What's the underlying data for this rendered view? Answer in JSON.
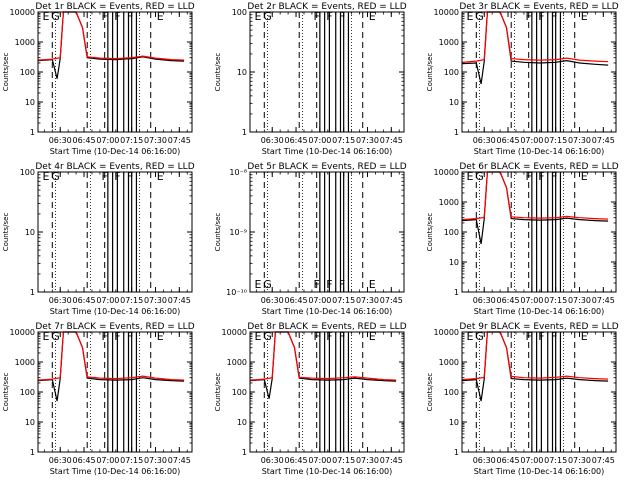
{
  "chart_data": [
    {
      "type": "line",
      "title": "Det 1r BLACK = Events, RED = LLD",
      "ylabel": "Counts/sec",
      "xlabel": "Start Time (10-Dec-14 06:16:00)",
      "xticks": [
        "06:30",
        "06:45",
        "07:00",
        "07:15",
        "07:30",
        "07:45"
      ],
      "yscale": "log",
      "ylim": [
        1,
        10000
      ],
      "yticks": [
        "1",
        "10",
        "100",
        "1000",
        "10000"
      ],
      "flags": [
        "E",
        "G",
        "F",
        "F",
        "F",
        "E"
      ],
      "flare": true,
      "series": [
        {
          "color": "#000000",
          "x": [
            "06:16",
            "06:25",
            "06:28",
            "06:30",
            "06:32",
            "06:40",
            "06:44",
            "06:47",
            "06:55",
            "07:05",
            "07:15",
            "07:22",
            "07:30",
            "07:40",
            "07:48"
          ],
          "y": [
            240,
            260,
            60,
            280,
            10000,
            10000,
            3000,
            300,
            270,
            260,
            280,
            320,
            270,
            240,
            230
          ]
        },
        {
          "color": "#ff0000",
          "x": [
            "06:16",
            "06:25",
            "06:30",
            "06:32",
            "06:40",
            "06:44",
            "06:47",
            "06:55",
            "07:05",
            "07:15",
            "07:22",
            "07:30",
            "07:40",
            "07:48"
          ],
          "y": [
            250,
            270,
            300,
            10000,
            10000,
            3000,
            320,
            290,
            280,
            300,
            340,
            290,
            260,
            250
          ]
        }
      ]
    },
    {
      "type": "line",
      "title": "Det 2r BLACK = Events, RED = LLD",
      "ylabel": "Counts/sec",
      "xlabel": "Start Time (10-Dec-14 06:16:00)",
      "xticks": [
        "06:30",
        "06:45",
        "07:00",
        "07:15",
        "07:30",
        "07:45"
      ],
      "yscale": "log",
      "ylim": [
        1,
        100
      ],
      "yticks": [
        "1",
        "10",
        "100"
      ],
      "flags": [
        "E",
        "G",
        "F",
        "F",
        "F",
        "E"
      ],
      "flare": false,
      "series": []
    },
    {
      "type": "line",
      "title": "Det 3r BLACK = Events, RED = LLD",
      "ylabel": "Counts/sec",
      "xlabel": "Start Time (10-Dec-14 06:16:00)",
      "xticks": [
        "06:30",
        "06:45",
        "07:00",
        "07:15",
        "07:30",
        "07:45"
      ],
      "yscale": "log",
      "ylim": [
        1,
        10000
      ],
      "yticks": [
        "1",
        "10",
        "100",
        "1000",
        "10000"
      ],
      "flags": [
        "E",
        "G",
        "F",
        "F",
        "F",
        "E"
      ],
      "flare": true,
      "series": [
        {
          "color": "#000000",
          "x": [
            "06:16",
            "06:25",
            "06:28",
            "06:30",
            "06:32",
            "06:40",
            "06:44",
            "06:47",
            "06:55",
            "07:05",
            "07:15",
            "07:22",
            "07:30",
            "07:40",
            "07:48"
          ],
          "y": [
            190,
            200,
            40,
            220,
            10000,
            10000,
            3000,
            230,
            210,
            200,
            210,
            240,
            200,
            180,
            170
          ]
        },
        {
          "color": "#ff0000",
          "x": [
            "06:16",
            "06:25",
            "06:30",
            "06:32",
            "06:40",
            "06:44",
            "06:47",
            "06:55",
            "07:05",
            "07:15",
            "07:22",
            "07:30",
            "07:40",
            "07:48"
          ],
          "y": [
            210,
            230,
            260,
            10000,
            10000,
            3000,
            280,
            260,
            250,
            260,
            290,
            250,
            230,
            220
          ]
        }
      ]
    },
    {
      "type": "line",
      "title": "Det 4r BLACK = Events, RED = LLD",
      "ylabel": "Counts/sec",
      "xlabel": "Start Time (10-Dec-14 06:16:00)",
      "xticks": [
        "06:30",
        "06:45",
        "07:00",
        "07:15",
        "07:30",
        "07:45"
      ],
      "yscale": "log",
      "ylim": [
        1,
        100
      ],
      "yticks": [
        "1",
        "10",
        "100"
      ],
      "flags": [
        "E",
        "G",
        "F",
        "F",
        "F",
        "E"
      ],
      "flare": false,
      "series": []
    },
    {
      "type": "line",
      "title": "Det 5r BLACK = Events, RED = LLD",
      "ylabel": "Counts/sec",
      "xlabel": "Start Time (10-Dec-14 06:16:00)",
      "xticks": [
        "06:30",
        "06:45",
        "07:00",
        "07:15",
        "07:30",
        "07:45"
      ],
      "yscale": "log",
      "ylim": [
        1e-10,
        1e-08
      ],
      "yticks": [
        "10⁻¹⁰",
        "10⁻⁹",
        "10⁻⁸"
      ],
      "flags": [
        "E",
        "G",
        "F",
        "F",
        "F",
        "E"
      ],
      "flare": false,
      "series": []
    },
    {
      "type": "line",
      "title": "Det 6r BLACK = Events, RED = LLD",
      "ylabel": "Counts/sec",
      "xlabel": "Start Time (10-Dec-14 06:16:00)",
      "xticks": [
        "06:30",
        "06:45",
        "07:00",
        "07:15",
        "07:30",
        "07:45"
      ],
      "yscale": "log",
      "ylim": [
        1,
        10000
      ],
      "yticks": [
        "1",
        "10",
        "100",
        "1000",
        "10000"
      ],
      "flags": [
        "E",
        "G",
        "F",
        "F",
        "F",
        "E"
      ],
      "flare": true,
      "series": [
        {
          "color": "#000000",
          "x": [
            "06:16",
            "06:25",
            "06:28",
            "06:30",
            "06:32",
            "06:40",
            "06:44",
            "06:47",
            "06:55",
            "07:05",
            "07:15",
            "07:22",
            "07:30",
            "07:40",
            "07:48"
          ],
          "y": [
            240,
            260,
            40,
            270,
            10000,
            10000,
            3000,
            280,
            260,
            250,
            260,
            290,
            260,
            240,
            230
          ]
        },
        {
          "color": "#ff0000",
          "x": [
            "06:16",
            "06:25",
            "06:30",
            "06:32",
            "06:40",
            "06:44",
            "06:47",
            "06:55",
            "07:05",
            "07:15",
            "07:22",
            "07:30",
            "07:40",
            "07:48"
          ],
          "y": [
            260,
            280,
            310,
            10000,
            10000,
            3000,
            320,
            300,
            290,
            300,
            330,
            300,
            280,
            270
          ]
        }
      ]
    },
    {
      "type": "line",
      "title": "Det 7r BLACK = Events, RED = LLD",
      "ylabel": "Counts/sec",
      "xlabel": "Start Time (10-Dec-14 06:16:00)",
      "xticks": [
        "06:30",
        "06:45",
        "07:00",
        "07:15",
        "07:30",
        "07:45"
      ],
      "yscale": "log",
      "ylim": [
        1,
        10000
      ],
      "yticks": [
        "1",
        "10",
        "100",
        "1000",
        "10000"
      ],
      "flags": [
        "E",
        "G",
        "F",
        "F",
        "F",
        "E"
      ],
      "flare": true,
      "series": [
        {
          "color": "#000000",
          "x": [
            "06:16",
            "06:25",
            "06:28",
            "06:30",
            "06:32",
            "06:40",
            "06:44",
            "06:47",
            "06:55",
            "07:05",
            "07:15",
            "07:22",
            "07:30",
            "07:40",
            "07:48"
          ],
          "y": [
            240,
            260,
            50,
            280,
            10000,
            10000,
            3000,
            290,
            260,
            250,
            260,
            300,
            260,
            240,
            230
          ]
        },
        {
          "color": "#ff0000",
          "x": [
            "06:16",
            "06:25",
            "06:30",
            "06:32",
            "06:40",
            "06:44",
            "06:47",
            "06:55",
            "07:05",
            "07:15",
            "07:22",
            "07:30",
            "07:40",
            "07:48"
          ],
          "y": [
            250,
            270,
            300,
            10000,
            10000,
            3000,
            320,
            290,
            280,
            300,
            340,
            290,
            260,
            250
          ]
        }
      ]
    },
    {
      "type": "line",
      "title": "Det 8r BLACK = Events, RED = LLD",
      "ylabel": "Counts/sec",
      "xlabel": "Start Time (10-Dec-14 06:16:00)",
      "xticks": [
        "06:30",
        "06:45",
        "07:00",
        "07:15",
        "07:30",
        "07:45"
      ],
      "yscale": "log",
      "ylim": [
        1,
        10000
      ],
      "yticks": [
        "1",
        "10",
        "100",
        "1000",
        "10000"
      ],
      "flags": [
        "E",
        "G",
        "F",
        "F",
        "F",
        "E"
      ],
      "flare": true,
      "series": [
        {
          "color": "#000000",
          "x": [
            "06:16",
            "06:25",
            "06:28",
            "06:30",
            "06:32",
            "06:40",
            "06:44",
            "06:47",
            "06:55",
            "07:05",
            "07:15",
            "07:22",
            "07:30",
            "07:40",
            "07:48"
          ],
          "y": [
            240,
            260,
            60,
            280,
            10000,
            10000,
            3000,
            290,
            260,
            250,
            260,
            290,
            260,
            240,
            230
          ]
        },
        {
          "color": "#ff0000",
          "x": [
            "06:16",
            "06:25",
            "06:30",
            "06:32",
            "06:40",
            "06:44",
            "06:47",
            "06:55",
            "07:05",
            "07:15",
            "07:22",
            "07:30",
            "07:40",
            "07:48"
          ],
          "y": [
            250,
            270,
            300,
            10000,
            10000,
            3000,
            310,
            290,
            280,
            300,
            320,
            290,
            260,
            250
          ]
        }
      ]
    },
    {
      "type": "line",
      "title": "Det 9r BLACK = Events, RED = LLD",
      "ylabel": "Counts/sec",
      "xlabel": "Start Time (10-Dec-14 06:16:00)",
      "xticks": [
        "06:30",
        "06:45",
        "07:00",
        "07:15",
        "07:30",
        "07:45"
      ],
      "yscale": "log",
      "ylim": [
        1,
        10000
      ],
      "yticks": [
        "1",
        "10",
        "100",
        "1000",
        "10000"
      ],
      "flags": [
        "E",
        "G",
        "F",
        "F",
        "F",
        "E"
      ],
      "flare": true,
      "series": [
        {
          "color": "#000000",
          "x": [
            "06:16",
            "06:25",
            "06:28",
            "06:30",
            "06:32",
            "06:40",
            "06:44",
            "06:47",
            "06:55",
            "07:05",
            "07:15",
            "07:22",
            "07:30",
            "07:40",
            "07:48"
          ],
          "y": [
            240,
            260,
            50,
            270,
            10000,
            10000,
            3000,
            280,
            260,
            250,
            260,
            290,
            260,
            240,
            230
          ]
        },
        {
          "color": "#ff0000",
          "x": [
            "06:16",
            "06:25",
            "06:30",
            "06:32",
            "06:40",
            "06:44",
            "06:47",
            "06:55",
            "07:05",
            "07:15",
            "07:22",
            "07:30",
            "07:40",
            "07:48"
          ],
          "y": [
            260,
            280,
            310,
            10000,
            10000,
            3000,
            330,
            300,
            290,
            310,
            340,
            300,
            280,
            270
          ]
        }
      ]
    }
  ],
  "markers": {
    "dashed_times": [
      "06:25",
      "06:47",
      "06:58",
      "07:27"
    ],
    "solid_times": [
      "07:00",
      "07:03",
      "07:06",
      "07:10",
      "07:13",
      "07:15",
      "07:18"
    ],
    "dotted_times": [
      "06:27",
      "06:49",
      "07:20"
    ]
  }
}
